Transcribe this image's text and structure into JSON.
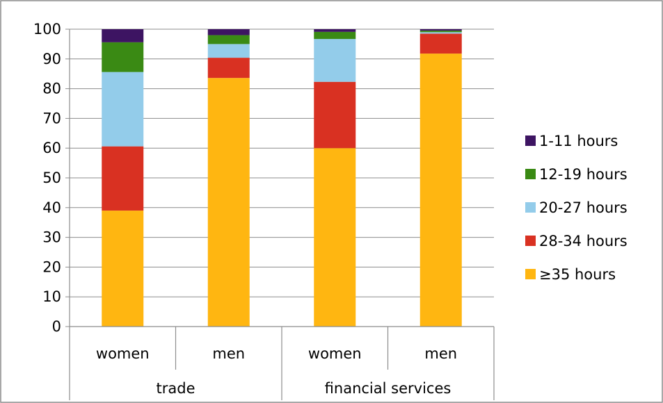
{
  "chart_data": {
    "type": "bar",
    "stacked": true,
    "groups": [
      {
        "label": "trade",
        "categories": [
          "women",
          "men"
        ]
      },
      {
        "label": "financial services",
        "categories": [
          "women",
          "men"
        ]
      }
    ],
    "ylim": [
      0,
      100
    ],
    "yticks": [
      0,
      10,
      20,
      30,
      40,
      50,
      60,
      70,
      80,
      90,
      100
    ],
    "grid": true,
    "legend_position": "right",
    "series": [
      {
        "name": "≥35 hours",
        "color": "#FFB611",
        "values": [
          39,
          83.6,
          60,
          91.8
        ]
      },
      {
        "name": "28-34 hours",
        "color": "#D93122",
        "values": [
          21.6,
          6.8,
          22.3,
          6.7
        ]
      },
      {
        "name": "20-27 hours",
        "color": "#93CCEA",
        "values": [
          25,
          4.6,
          14.4,
          0.5
        ]
      },
      {
        "name": "12-19 hours",
        "color": "#3A8A14",
        "values": [
          10,
          3,
          2.4,
          0.5
        ]
      },
      {
        "name": "1-11 hours",
        "color": "#3D1462",
        "values": [
          4.4,
          2,
          0.9,
          0.5
        ]
      }
    ],
    "legend_order": [
      "1-11 hours",
      "12-19 hours",
      "20-27 hours",
      "28-34 hours",
      "≥35 hours"
    ]
  }
}
